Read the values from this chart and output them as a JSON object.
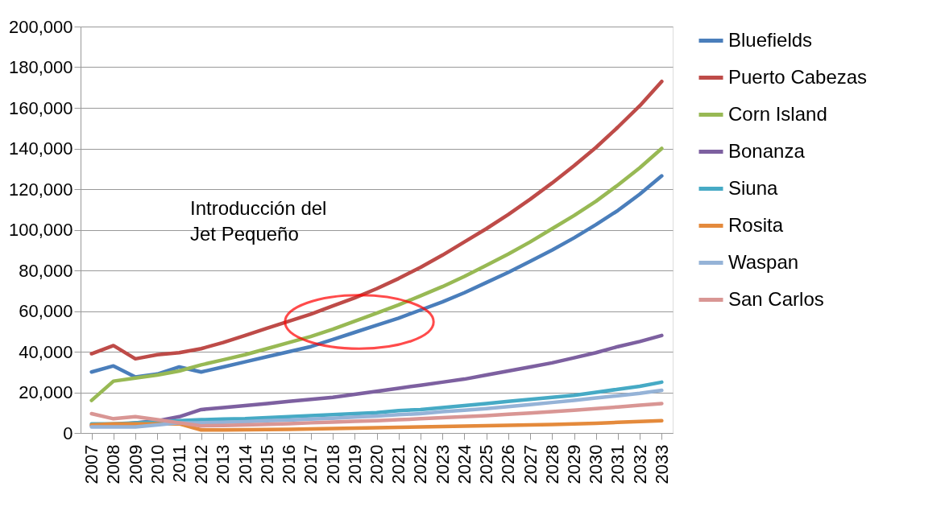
{
  "chart_data": {
    "type": "line",
    "categories": [
      "2007",
      "2008",
      "2009",
      "2010",
      "2011",
      "2012",
      "2013",
      "2014",
      "2015",
      "2016",
      "2017",
      "2018",
      "2019",
      "2020",
      "2021",
      "2022",
      "2023",
      "2024",
      "2025",
      "2026",
      "2027",
      "2028",
      "2029",
      "2030",
      "2031",
      "2032",
      "2033"
    ],
    "series": [
      {
        "name": "Bluefields",
        "color": "#4a7ebb",
        "values": [
          30000,
          33000,
          27500,
          29000,
          32500,
          30000,
          32500,
          35000,
          37500,
          40000,
          42500,
          46000,
          49500,
          53000,
          56500,
          60500,
          64500,
          69000,
          74000,
          79000,
          84500,
          90000,
          96000,
          102500,
          109500,
          117500,
          126500
        ]
      },
      {
        "name": "Puerto Cabezas",
        "color": "#be4b48",
        "values": [
          39000,
          43000,
          36500,
          38500,
          39500,
          41500,
          44500,
          48000,
          51500,
          55000,
          58500,
          62500,
          66500,
          71000,
          76000,
          81500,
          87500,
          94000,
          100500,
          107500,
          115000,
          123000,
          131500,
          140500,
          150500,
          161000,
          173000
        ]
      },
      {
        "name": "Corn Island",
        "color": "#98b954",
        "values": [
          16000,
          25500,
          27000,
          28500,
          30500,
          33500,
          36000,
          38500,
          41500,
          44500,
          47500,
          51000,
          55000,
          59000,
          63000,
          67500,
          72000,
          77000,
          82500,
          88000,
          94000,
          100500,
          107000,
          114000,
          122000,
          130500,
          140000
        ]
      },
      {
        "name": "Bonanza",
        "color": "#7d60a0",
        "values": [
          3500,
          4000,
          5000,
          6000,
          8000,
          11500,
          12500,
          13500,
          14500,
          15500,
          16500,
          17500,
          19000,
          20500,
          22000,
          23500,
          25000,
          26500,
          28500,
          30500,
          32500,
          34500,
          37000,
          39500,
          42500,
          45000,
          48000
        ]
      },
      {
        "name": "Siuna",
        "color": "#46aac5",
        "values": [
          4500,
          4500,
          5000,
          5500,
          6000,
          6500,
          6800,
          7000,
          7500,
          8000,
          8500,
          9000,
          9500,
          10000,
          11000,
          11500,
          12500,
          13500,
          14500,
          15500,
          16500,
          17500,
          18500,
          20000,
          21500,
          23000,
          25000
        ]
      },
      {
        "name": "Rosita",
        "color": "#e48a3c",
        "values": [
          4000,
          4500,
          4500,
          4500,
          4500,
          1500,
          1500,
          1600,
          1700,
          1800,
          2000,
          2200,
          2400,
          2600,
          2800,
          3000,
          3200,
          3400,
          3600,
          3800,
          4000,
          4200,
          4500,
          4800,
          5200,
          5600,
          6000
        ]
      },
      {
        "name": "Waspan",
        "color": "#95b3d7",
        "values": [
          3000,
          3000,
          3000,
          4000,
          5000,
          5000,
          5200,
          5500,
          6000,
          6300,
          6800,
          7200,
          7800,
          8300,
          9000,
          9500,
          10500,
          11200,
          12000,
          13000,
          14000,
          15000,
          16000,
          17200,
          18300,
          19500,
          21000
        ]
      },
      {
        "name": "San Carlos",
        "color": "#d99694",
        "values": [
          9500,
          7000,
          8000,
          6500,
          5000,
          3500,
          3700,
          4000,
          4300,
          4600,
          5000,
          5300,
          5700,
          6000,
          6500,
          7000,
          7500,
          8000,
          8500,
          9200,
          9800,
          10500,
          11200,
          12000,
          12800,
          13700,
          14500
        ]
      }
    ],
    "ylim": [
      0,
      200000
    ],
    "yticks": [
      0,
      {
        "value": 20000,
        "label": "20,000"
      },
      {
        "value": 40000,
        "label": "40,000"
      },
      {
        "value": 60000,
        "label": "60,000"
      },
      {
        "value": 80000,
        "label": "80,000"
      },
      {
        "value": 100000,
        "label": "100,000"
      },
      {
        "value": 120000,
        "label": "120,000"
      },
      {
        "value": 140000,
        "label": "140,000"
      },
      {
        "value": 160000,
        "label": "160,000"
      },
      {
        "value": 180000,
        "label": "180,000"
      },
      {
        "value": 200000,
        "label": "200,000"
      }
    ],
    "grid": "y",
    "legend": "right",
    "marker": "none",
    "line_style": "solid",
    "annotations": [
      "Introducción del\nJet Pequeño"
    ]
  }
}
